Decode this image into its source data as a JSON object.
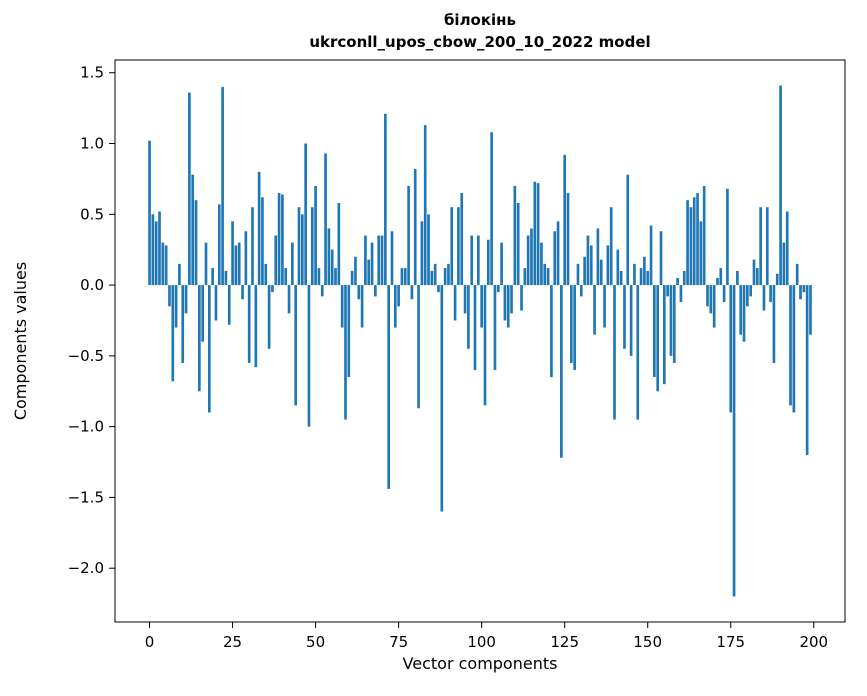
{
  "chart_data": {
    "type": "bar",
    "title": "білокінь",
    "subtitle": "ukrconll_upos_cbow_200_10_2022 model",
    "xlabel": "Vector components",
    "ylabel": "Components values",
    "bar_color": "#1f77b4",
    "axis_color": "#000000",
    "xlim": [
      -10.4,
      209.4
    ],
    "ylim": [
      -2.38,
      1.59
    ],
    "x_ticks": [
      0,
      25,
      50,
      75,
      100,
      125,
      150,
      175,
      200
    ],
    "y_ticks": [
      1.5,
      1.0,
      0.5,
      0.0,
      -0.5,
      -1.0,
      -1.5,
      -2.0
    ],
    "legend": "none",
    "grid": false,
    "values": [
      1.02,
      0.5,
      0.45,
      0.52,
      0.3,
      0.28,
      -0.15,
      -0.68,
      -0.3,
      0.15,
      -0.55,
      -0.2,
      1.36,
      0.78,
      0.6,
      -0.75,
      -0.4,
      0.3,
      -0.9,
      0.12,
      -0.25,
      0.57,
      1.4,
      0.1,
      -0.28,
      0.45,
      0.28,
      0.3,
      -0.1,
      0.38,
      -0.55,
      0.55,
      -0.58,
      0.8,
      0.62,
      0.15,
      -0.45,
      -0.05,
      0.35,
      0.65,
      0.64,
      0.12,
      -0.2,
      0.3,
      -0.85,
      0.55,
      0.5,
      1.0,
      -1.0,
      0.55,
      0.7,
      0.12,
      -0.08,
      0.93,
      0.4,
      0.25,
      0.12,
      0.58,
      -0.3,
      -0.95,
      -0.65,
      0.1,
      0.2,
      -0.1,
      -0.3,
      0.35,
      0.18,
      0.3,
      -0.08,
      0.35,
      0.35,
      1.21,
      -1.44,
      0.38,
      -0.3,
      -0.15,
      0.12,
      0.12,
      0.7,
      -0.1,
      0.82,
      -0.87,
      0.45,
      1.13,
      0.5,
      0.1,
      0.15,
      -0.05,
      -1.6,
      0.12,
      0.15,
      0.55,
      -0.25,
      0.55,
      0.65,
      -0.2,
      -0.45,
      0.35,
      -0.6,
      0.35,
      -0.3,
      -0.85,
      0.32,
      1.08,
      -0.6,
      -0.05,
      0.3,
      -0.25,
      -0.3,
      -0.2,
      0.7,
      0.58,
      -0.18,
      0.12,
      0.35,
      0.4,
      0.73,
      0.72,
      0.3,
      0.15,
      0.12,
      -0.65,
      0.38,
      0.45,
      -1.22,
      0.92,
      0.65,
      -0.55,
      -0.6,
      0.15,
      -0.08,
      0.2,
      0.35,
      0.28,
      -0.35,
      0.4,
      0.18,
      -0.3,
      0.28,
      0.55,
      -0.95,
      0.25,
      0.1,
      -0.45,
      0.78,
      -0.5,
      0.15,
      -0.95,
      0.12,
      0.2,
      0.1,
      0.42,
      -0.65,
      -0.75,
      0.38,
      -0.7,
      -0.08,
      -0.5,
      -0.55,
      0.05,
      -0.12,
      0.1,
      0.6,
      0.55,
      0.62,
      0.65,
      0.45,
      0.7,
      -0.15,
      -0.2,
      -0.3,
      0.05,
      0.12,
      -0.12,
      0.68,
      -0.9,
      -2.2,
      0.1,
      -0.35,
      -0.4,
      -0.15,
      -0.08,
      0.18,
      0.12,
      0.55,
      -0.18,
      0.55,
      -0.12,
      -0.55,
      0.08,
      1.41,
      0.3,
      0.52,
      -0.85,
      -0.9,
      0.15,
      -0.1,
      -0.05,
      -1.2,
      -0.35
    ]
  }
}
